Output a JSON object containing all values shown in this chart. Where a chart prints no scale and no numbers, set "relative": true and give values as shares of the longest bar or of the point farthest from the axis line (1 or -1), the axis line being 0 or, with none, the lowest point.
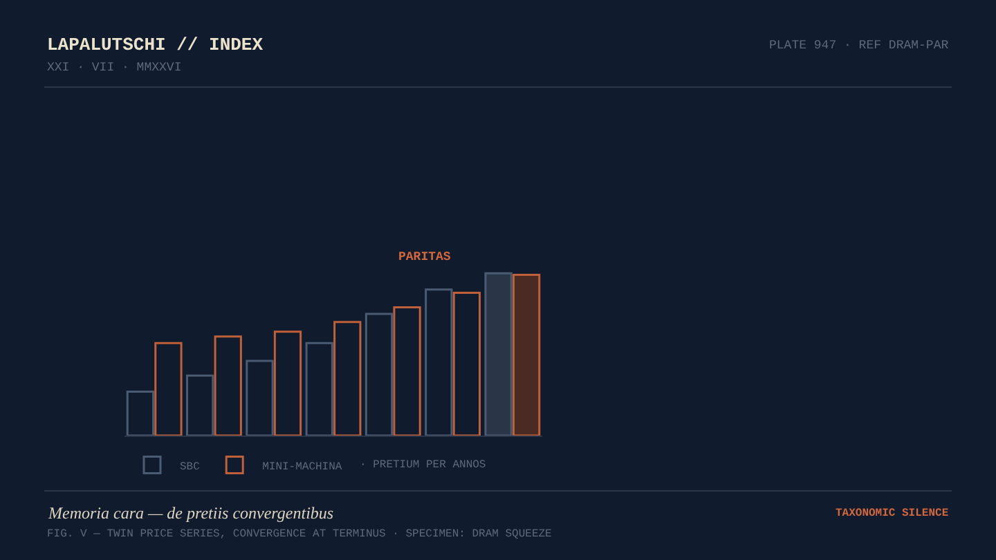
{
  "chart_data": {
    "type": "bar",
    "title": "LAPALUTSCHI // INDEX",
    "subtitle": "XXI · VII · MMXXVI",
    "xlabel": "· PRETIUM PER ANNOS",
    "categories": [
      null,
      null,
      null,
      null,
      null,
      null,
      null
    ],
    "relative": true,
    "series": [
      {
        "name": "SBC",
        "color": "#4b5b72",
        "colors": [
          "#101b2d",
          "#101b2d",
          "#101b2d",
          "#101b2d",
          "#101b2d",
          "#101b2d",
          "#2a3548"
        ],
        "values": [
          0.27,
          0.37,
          0.46,
          0.57,
          0.75,
          0.9,
          1.0
        ]
      },
      {
        "name": "MINI-MACHINA",
        "color": "#c0603a",
        "colors": [
          "#101b2d",
          "#101b2d",
          "#101b2d",
          "#101b2d",
          "#101b2d",
          "#101b2d",
          "#4a2a22"
        ],
        "values": [
          0.57,
          0.61,
          0.64,
          0.7,
          0.79,
          0.88,
          0.99
        ]
      }
    ],
    "annotations": [
      "PLATE 947 · REF DRAM-PAR",
      "PARITAS",
      "Memoria cara — de pretiis convergentibus",
      "TAXONOMIC SILENCE",
      "FIG. V — TWIN PRICE SERIES, CONVERGENCE AT TERMINUS · SPECIMEN: DRAM SQUEEZE"
    ],
    "legend": "bottom left"
  }
}
